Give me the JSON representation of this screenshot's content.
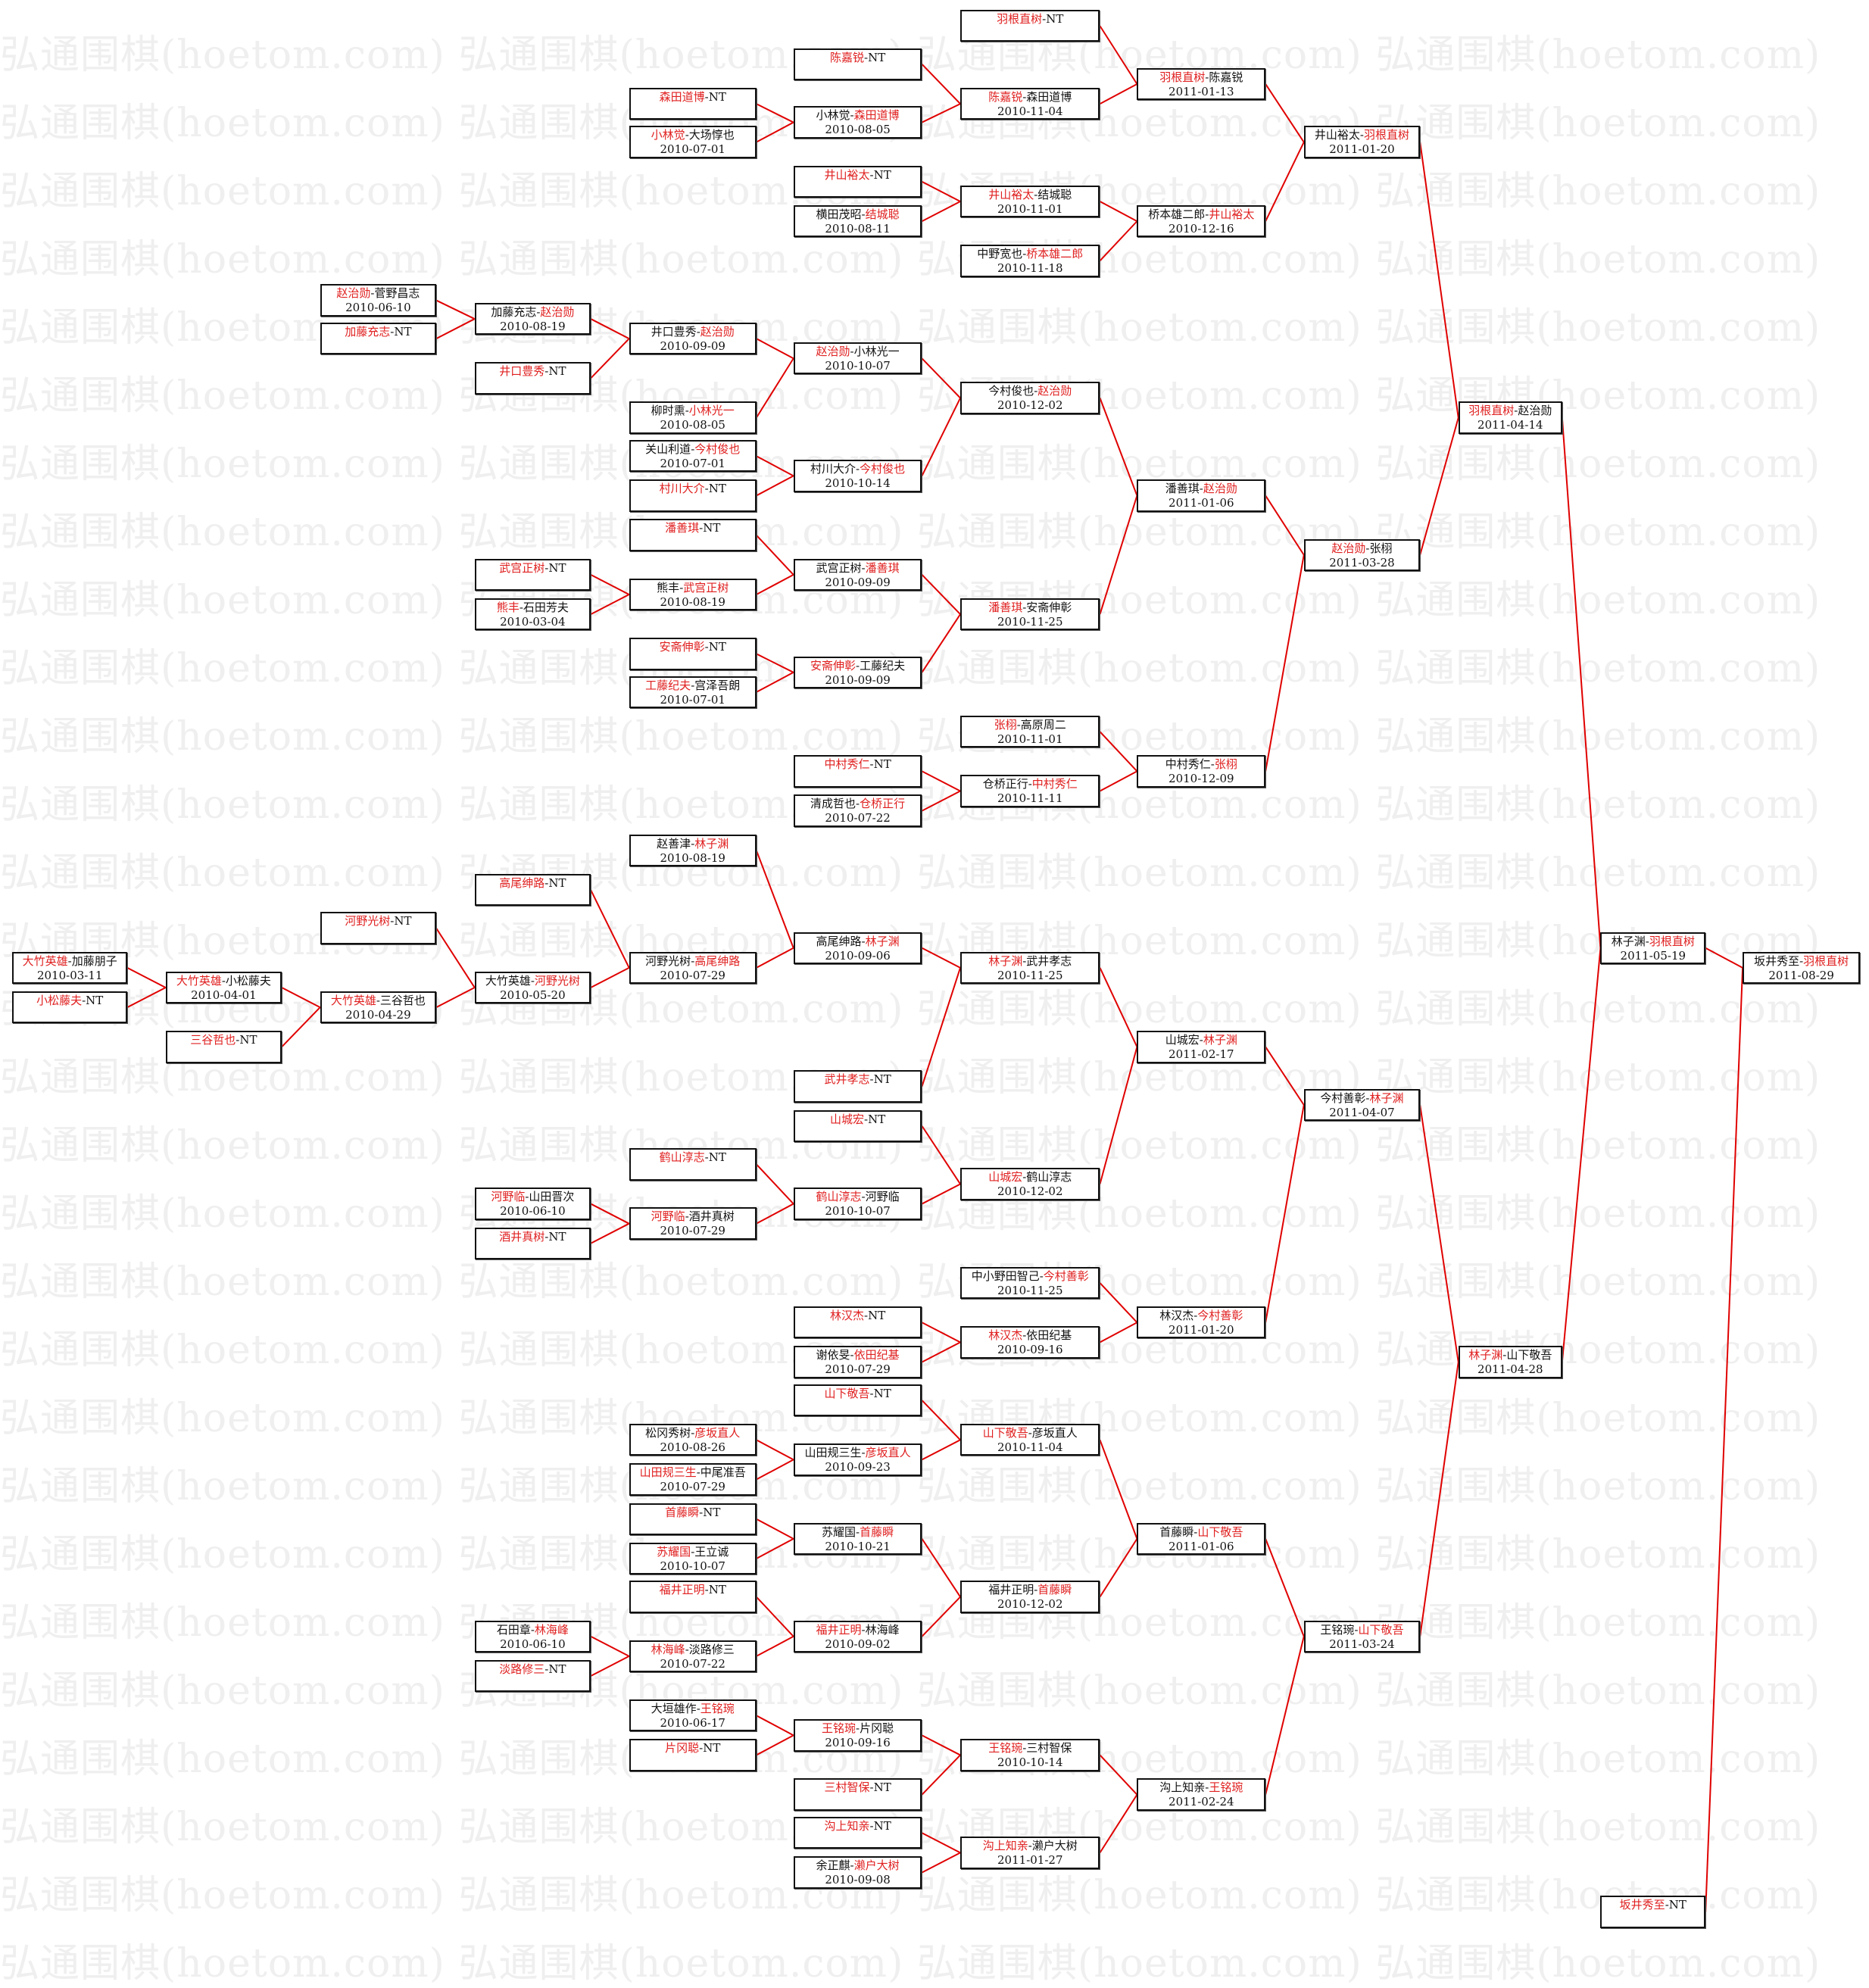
{
  "watermark": "弘通围棋(hoetom.com) 弘通围棋(hoetom.com) 弘通围棋(hoetom.com) 弘通围棋(hoetom.com)",
  "colors": {
    "winner": "#e02020",
    "line": "#e00000",
    "border": "#111111",
    "watermark": "#efefef"
  },
  "matches": [
    {
      "p1": "羽根直树",
      "p2": "NT",
      "w": 1,
      "date": ""
    },
    {
      "p1": "陈嘉锐",
      "p2": "NT",
      "w": 1,
      "date": ""
    },
    {
      "p1": "森田道博",
      "p2": "NT",
      "w": 1,
      "date": ""
    },
    {
      "p1": "小林觉",
      "p2": "大场惇也",
      "w": 1,
      "date": "2010-07-01"
    },
    {
      "p1": "小林觉",
      "p2": "森田道博",
      "w": 2,
      "date": "2010-08-05"
    },
    {
      "p1": "陈嘉锐",
      "p2": "森田道博",
      "w": 1,
      "date": "2010-11-04"
    },
    {
      "p1": "羽根直树",
      "p2": "陈嘉锐",
      "w": 1,
      "date": "2011-01-13"
    },
    {
      "p1": "井山裕太",
      "p2": "NT",
      "w": 1,
      "date": ""
    },
    {
      "p1": "横田茂昭",
      "p2": "结城聪",
      "w": 2,
      "date": "2010-08-11"
    },
    {
      "p1": "井山裕太",
      "p2": "结城聪",
      "w": 1,
      "date": "2010-11-01"
    },
    {
      "p1": "中野宽也",
      "p2": "桥本雄二郎",
      "w": 2,
      "date": "2010-11-18"
    },
    {
      "p1": "桥本雄二郎",
      "p2": "井山裕太",
      "w": 2,
      "date": "2010-12-16"
    },
    {
      "p1": "井山裕太",
      "p2": "羽根直树",
      "w": 2,
      "date": "2011-01-20"
    },
    {
      "p1": "赵治勋",
      "p2": "菅野昌志",
      "w": 1,
      "date": "2010-06-10"
    },
    {
      "p1": "加藤充志",
      "p2": "NT",
      "w": 1,
      "date": ""
    },
    {
      "p1": "加藤充志",
      "p2": "赵治勋",
      "w": 2,
      "date": "2010-08-19"
    },
    {
      "p1": "井口豊秀",
      "p2": "NT",
      "w": 1,
      "date": ""
    },
    {
      "p1": "井口豊秀",
      "p2": "赵治勋",
      "w": 2,
      "date": "2010-09-09"
    },
    {
      "p1": "柳时熏",
      "p2": "小林光一",
      "w": 2,
      "date": "2010-08-05"
    },
    {
      "p1": "赵治勋",
      "p2": "小林光一",
      "w": 1,
      "date": "2010-10-07"
    },
    {
      "p1": "关山利道",
      "p2": "今村俊也",
      "w": 2,
      "date": "2010-07-01"
    },
    {
      "p1": "村川大介",
      "p2": "NT",
      "w": 1,
      "date": ""
    },
    {
      "p1": "村川大介",
      "p2": "今村俊也",
      "w": 2,
      "date": "2010-10-14"
    },
    {
      "p1": "今村俊也",
      "p2": "赵治勋",
      "w": 2,
      "date": "2010-12-02"
    },
    {
      "p1": "潘善琪",
      "p2": "NT",
      "w": 1,
      "date": ""
    },
    {
      "p1": "武宫正树",
      "p2": "NT",
      "w": 1,
      "date": ""
    },
    {
      "p1": "熊丰",
      "p2": "石田芳夫",
      "w": 1,
      "date": "2010-03-04"
    },
    {
      "p1": "熊丰",
      "p2": "武宫正树",
      "w": 2,
      "date": "2010-08-19"
    },
    {
      "p1": "武宫正树",
      "p2": "潘善琪",
      "w": 2,
      "date": "2010-09-09"
    },
    {
      "p1": "安斋伸彰",
      "p2": "NT",
      "w": 1,
      "date": ""
    },
    {
      "p1": "工藤纪夫",
      "p2": "宫泽吾朗",
      "w": 1,
      "date": "2010-07-01"
    },
    {
      "p1": "安斋伸彰",
      "p2": "工藤纪夫",
      "w": 1,
      "date": "2010-09-09"
    },
    {
      "p1": "潘善琪",
      "p2": "安斋伸彰",
      "w": 1,
      "date": "2010-11-25"
    },
    {
      "p1": "潘善琪",
      "p2": "赵治勋",
      "w": 2,
      "date": "2011-01-06"
    },
    {
      "p1": "张栩",
      "p2": "高原周二",
      "w": 1,
      "date": "2010-11-01"
    },
    {
      "p1": "中村秀仁",
      "p2": "NT",
      "w": 1,
      "date": ""
    },
    {
      "p1": "清成哲也",
      "p2": "仓桥正行",
      "w": 2,
      "date": "2010-07-22"
    },
    {
      "p1": "仓桥正行",
      "p2": "中村秀仁",
      "w": 2,
      "date": "2010-11-11"
    },
    {
      "p1": "中村秀仁",
      "p2": "张栩",
      "w": 2,
      "date": "2010-12-09"
    },
    {
      "p1": "赵治勋",
      "p2": "张栩",
      "w": 1,
      "date": "2011-03-28"
    },
    {
      "p1": "羽根直树",
      "p2": "赵治勋",
      "w": 1,
      "date": "2011-04-14"
    },
    {
      "p1": "赵善津",
      "p2": "林子渊",
      "w": 2,
      "date": "2010-08-19"
    },
    {
      "p1": "高尾绅路",
      "p2": "NT",
      "w": 1,
      "date": ""
    },
    {
      "p1": "河野光树",
      "p2": "NT",
      "w": 1,
      "date": ""
    },
    {
      "p1": "大竹英雄",
      "p2": "加藤朋子",
      "w": 1,
      "date": "2010-03-11"
    },
    {
      "p1": "小松藤夫",
      "p2": "NT",
      "w": 1,
      "date": ""
    },
    {
      "p1": "大竹英雄",
      "p2": "小松藤夫",
      "w": 1,
      "date": "2010-04-01"
    },
    {
      "p1": "三谷哲也",
      "p2": "NT",
      "w": 1,
      "date": ""
    },
    {
      "p1": "大竹英雄",
      "p2": "三谷哲也",
      "w": 1,
      "date": "2010-04-29"
    },
    {
      "p1": "大竹英雄",
      "p2": "河野光树",
      "w": 2,
      "date": "2010-05-20"
    },
    {
      "p1": "河野光树",
      "p2": "高尾绅路",
      "w": 2,
      "date": "2010-07-29"
    },
    {
      "p1": "高尾绅路",
      "p2": "林子渊",
      "w": 2,
      "date": "2010-09-06"
    },
    {
      "p1": "林子渊",
      "p2": "武井孝志",
      "w": 1,
      "date": "2010-11-25"
    },
    {
      "p1": "武井孝志",
      "p2": "NT",
      "w": 1,
      "date": ""
    },
    {
      "p1": "山城宏",
      "p2": "NT",
      "w": 1,
      "date": ""
    },
    {
      "p1": "鹤山淳志",
      "p2": "NT",
      "w": 1,
      "date": ""
    },
    {
      "p1": "河野临",
      "p2": "山田晋次",
      "w": 1,
      "date": "2010-06-10"
    },
    {
      "p1": "酒井真树",
      "p2": "NT",
      "w": 1,
      "date": ""
    },
    {
      "p1": "河野临",
      "p2": "酒井真树",
      "w": 1,
      "date": "2010-07-29"
    },
    {
      "p1": "鹤山淳志",
      "p2": "河野临",
      "w": 1,
      "date": "2010-10-07"
    },
    {
      "p1": "山城宏",
      "p2": "鹤山淳志",
      "w": 1,
      "date": "2010-12-02"
    },
    {
      "p1": "山城宏",
      "p2": "林子渊",
      "w": 2,
      "date": "2011-02-17"
    },
    {
      "p1": "中小野田智己",
      "p2": "今村善彰",
      "w": 2,
      "date": "2010-11-25"
    },
    {
      "p1": "林汉杰",
      "p2": "NT",
      "w": 1,
      "date": ""
    },
    {
      "p1": "谢依旻",
      "p2": "依田纪基",
      "w": 2,
      "date": "2010-07-29"
    },
    {
      "p1": "林汉杰",
      "p2": "依田纪基",
      "w": 1,
      "date": "2010-09-16"
    },
    {
      "p1": "林汉杰",
      "p2": "今村善彰",
      "w": 2,
      "date": "2011-01-20"
    },
    {
      "p1": "今村善彰",
      "p2": "林子渊",
      "w": 2,
      "date": "2011-04-07"
    },
    {
      "p1": "山下敬吾",
      "p2": "NT",
      "w": 1,
      "date": ""
    },
    {
      "p1": "松冈秀树",
      "p2": "彦坂直人",
      "w": 2,
      "date": "2010-08-26"
    },
    {
      "p1": "山田规三生",
      "p2": "中尾准吾",
      "w": 1,
      "date": "2010-07-29"
    },
    {
      "p1": "山田规三生",
      "p2": "彦坂直人",
      "w": 2,
      "date": "2010-09-23"
    },
    {
      "p1": "山下敬吾",
      "p2": "彦坂直人",
      "w": 1,
      "date": "2010-11-04"
    },
    {
      "p1": "首藤瞬",
      "p2": "NT",
      "w": 1,
      "date": ""
    },
    {
      "p1": "苏耀国",
      "p2": "王立诚",
      "w": 1,
      "date": "2010-10-07"
    },
    {
      "p1": "苏耀国",
      "p2": "首藤瞬",
      "w": 2,
      "date": "2010-10-21"
    },
    {
      "p1": "福井正明",
      "p2": "NT",
      "w": 1,
      "date": ""
    },
    {
      "p1": "石田章",
      "p2": "林海峰",
      "w": 2,
      "date": "2010-06-10"
    },
    {
      "p1": "淡路修三",
      "p2": "NT",
      "w": 1,
      "date": ""
    },
    {
      "p1": "林海峰",
      "p2": "淡路修三",
      "w": 1,
      "date": "2010-07-22"
    },
    {
      "p1": "福井正明",
      "p2": "林海峰",
      "w": 1,
      "date": "2010-09-02"
    },
    {
      "p1": "福井正明",
      "p2": "首藤瞬",
      "w": 2,
      "date": "2010-12-02"
    },
    {
      "p1": "首藤瞬",
      "p2": "山下敬吾",
      "w": 2,
      "date": "2011-01-06"
    },
    {
      "p1": "大垣雄作",
      "p2": "王铭琬",
      "w": 2,
      "date": "2010-06-17"
    },
    {
      "p1": "片冈聪",
      "p2": "NT",
      "w": 1,
      "date": ""
    },
    {
      "p1": "王铭琬",
      "p2": "片冈聪",
      "w": 1,
      "date": "2010-09-16"
    },
    {
      "p1": "三村智保",
      "p2": "NT",
      "w": 1,
      "date": ""
    },
    {
      "p1": "王铭琬",
      "p2": "三村智保",
      "w": 1,
      "date": "2010-10-14"
    },
    {
      "p1": "沟上知亲",
      "p2": "NT",
      "w": 1,
      "date": ""
    },
    {
      "p1": "余正麒",
      "p2": "濑户大树",
      "w": 2,
      "date": "2010-09-08"
    },
    {
      "p1": "沟上知亲",
      "p2": "濑户大树",
      "w": 1,
      "date": "2011-01-27"
    },
    {
      "p1": "沟上知亲",
      "p2": "王铭琬",
      "w": 2,
      "date": "2011-02-24"
    },
    {
      "p1": "王铭琬",
      "p2": "山下敬吾",
      "w": 2,
      "date": "2011-03-24"
    },
    {
      "p1": "林子渊",
      "p2": "山下敬吾",
      "w": 1,
      "date": "2011-04-28"
    },
    {
      "p1": "林子渊",
      "p2": "羽根直树",
      "w": 2,
      "date": "2011-05-19"
    },
    {
      "p1": "坂井秀至",
      "p2": "羽根直树",
      "w": 2,
      "date": "2011-08-29"
    },
    {
      "p1": "坂井秀至",
      "p2": "NT",
      "w": 1,
      "date": ""
    }
  ]
}
